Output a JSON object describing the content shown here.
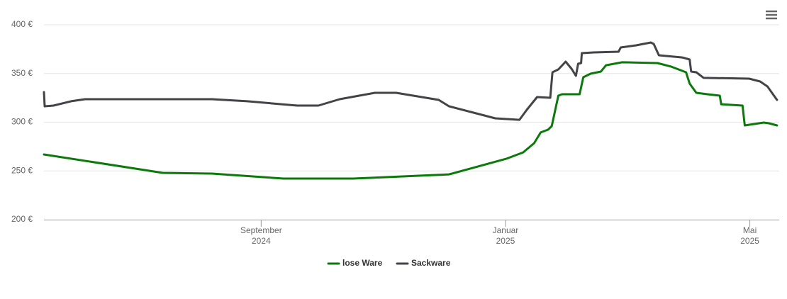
{
  "chart_data": {
    "type": "line",
    "xlim": [
      2024.371,
      2025.373
    ],
    "xticks": [
      {
        "value": 2024.667,
        "label": [
          "September",
          "2024"
        ]
      },
      {
        "value": 2025.0,
        "label": [
          "Januar",
          "2025"
        ]
      },
      {
        "value": 2025.333,
        "label": [
          "Mai",
          "2025"
        ]
      }
    ],
    "ylim": [
      200,
      400
    ],
    "yticks": [
      {
        "value": 200,
        "label": "200 €"
      },
      {
        "value": 250,
        "label": "250 €"
      },
      {
        "value": 300,
        "label": "300 €"
      },
      {
        "value": 350,
        "label": "350 €"
      },
      {
        "value": 400,
        "label": "400 €"
      }
    ],
    "grid": true,
    "legend": "bottom",
    "series": [
      {
        "name": "lose Ware",
        "color": "#0b7a0b",
        "x": [
          2024.371,
          2024.533,
          2024.6,
          2024.697,
          2024.793,
          2024.923,
          2025.001,
          2025.024,
          2025.039,
          2025.048,
          2025.058,
          2025.063,
          2025.072,
          2025.077,
          2025.101,
          2025.106,
          2025.116,
          2025.13,
          2025.137,
          2025.159,
          2025.207,
          2025.226,
          2025.246,
          2025.251,
          2025.26,
          2025.275,
          2025.292,
          2025.294,
          2025.323,
          2025.326,
          2025.352,
          2025.359,
          2025.37
        ],
        "values": [
          266.9,
          248,
          247.3,
          242.2,
          242.2,
          246.5,
          262.5,
          269,
          278.5,
          289.5,
          292.4,
          296,
          327.3,
          328.7,
          328.7,
          346.2,
          349.8,
          352,
          358.5,
          361.5,
          360.7,
          357,
          351.3,
          339.6,
          330.2,
          328.7,
          327.3,
          318.5,
          317.1,
          296.7,
          299.6,
          298.9,
          296.7
        ]
      },
      {
        "name": "Sackware",
        "color": "#434348",
        "x": [
          2024.371,
          2024.372,
          2024.384,
          2024.408,
          2024.427,
          2024.6,
          2024.648,
          2024.716,
          2024.745,
          2024.774,
          2024.822,
          2024.851,
          2024.909,
          2024.923,
          2024.986,
          2025.019,
          2025.029,
          2025.043,
          2025.061,
          2025.064,
          2025.072,
          2025.082,
          2025.09,
          2025.096,
          2025.099,
          2025.103,
          2025.104,
          2025.12,
          2025.154,
          2025.157,
          2025.178,
          2025.198,
          2025.202,
          2025.209,
          2025.241,
          2025.251,
          2025.253,
          2025.26,
          2025.27,
          2025.332,
          2025.347,
          2025.357,
          2025.37
        ],
        "values": [
          330.9,
          316.4,
          317.1,
          321.5,
          323.6,
          323.6,
          321.5,
          317.1,
          317.1,
          323.6,
          330.2,
          330.2,
          322.9,
          316.4,
          304,
          302.5,
          312.7,
          325.8,
          325.1,
          351.3,
          354.2,
          362.2,
          354.9,
          347.6,
          360,
          360.7,
          370.9,
          371.6,
          372.4,
          376.7,
          378.9,
          381.8,
          380.4,
          368.7,
          366.5,
          364.4,
          352,
          351.3,
          345.5,
          344.7,
          341.8,
          336.7,
          322.9
        ]
      }
    ]
  }
}
